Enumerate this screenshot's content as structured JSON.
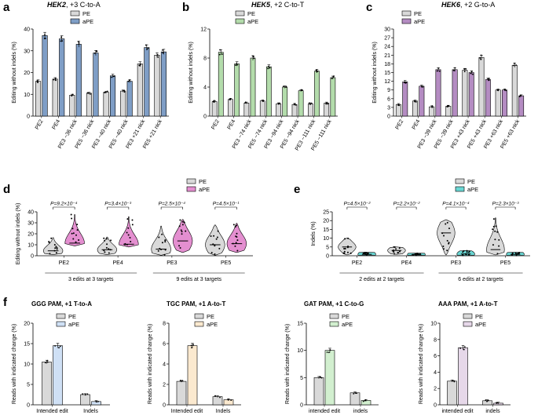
{
  "colors": {
    "pe": "#d9d9d9",
    "blue": "#7f9ec6",
    "green": "#b3dcab",
    "purple": "#b48cc2",
    "pink": "#e48fd0",
    "cyan": "#6ad6d3",
    "f1": "#cfe0f5",
    "f2": "#fbe9cf",
    "f3": "#d2efcf",
    "f4": "#e6d8e9",
    "stroke": "#000000"
  },
  "chart_data": [
    {
      "id": "a",
      "panel_label": "a",
      "type": "bar",
      "title_gene": "HEK2",
      "title_rest": ", +3 C-to-A",
      "ylabel": "Editing without indels (%)",
      "ylim": [
        0,
        40
      ],
      "yticks": [
        "0",
        "10",
        "20",
        "30",
        "40"
      ],
      "legend": [
        "PE",
        "aPE"
      ],
      "categories": [
        "PE2",
        "PE4",
        "PE3 −36 nick",
        "PE5 −36 nick",
        "PE3 −40 nick",
        "PE5 −40 nick",
        "PE3 +21 nick",
        "PE5 +21 nick"
      ],
      "series": [
        {
          "name": "PE",
          "values": [
            16,
            17,
            9.6,
            10.5,
            11,
            11.5,
            24,
            28
          ]
        },
        {
          "name": "aPE",
          "values": [
            37,
            35.5,
            33,
            29,
            18.5,
            16,
            31.5,
            29.5
          ]
        }
      ]
    },
    {
      "id": "b",
      "panel_label": "b",
      "type": "bar",
      "title_gene": "HEK5",
      "title_rest": ", +2 C-to-T",
      "ylabel": "Editing without indels (%)",
      "ylim": [
        0,
        12
      ],
      "yticks": [
        "0",
        "4",
        "8",
        "12"
      ],
      "legend": [
        "PE",
        "aPE"
      ],
      "categories": [
        "PE2",
        "PE4",
        "PE3 −74 nick",
        "PE5 −74 nick",
        "PE3 −94 nick",
        "PE5 −94 nick",
        "PE3 −111 nick",
        "PE5 −111 nick"
      ],
      "series": [
        {
          "name": "PE",
          "values": [
            2,
            2.3,
            1.8,
            2.1,
            1.7,
            1.6,
            1.7,
            1.8
          ]
        },
        {
          "name": "aPE",
          "values": [
            8.8,
            7.2,
            8,
            6.8,
            4,
            3.5,
            6.2,
            5.3
          ]
        }
      ]
    },
    {
      "id": "c",
      "panel_label": "c",
      "type": "bar",
      "title_gene": "HEK6",
      "title_rest": ", +2 G-to-A",
      "ylabel": "Editing without indels (%)",
      "ylim": [
        0,
        30
      ],
      "yticks": [
        "0",
        "3",
        "6",
        "9",
        "12",
        "15",
        "18",
        "21",
        "24",
        "27",
        "30"
      ],
      "legend": [
        "PE",
        "aPE"
      ],
      "categories": [
        "PE2",
        "PE4",
        "PE3 −39 nick",
        "PE5 −39 nick",
        "PE3 +43 nick",
        "PE5 +43 nick",
        "PE3 +63 nick",
        "PE5 +63 nick"
      ],
      "series": [
        {
          "name": "PE",
          "values": [
            4,
            5.2,
            3.2,
            3.4,
            15.8,
            20.2,
            9,
            17.5
          ]
        },
        {
          "name": "aPE",
          "values": [
            11.8,
            10.3,
            16,
            16,
            15,
            12.6,
            9,
            7
          ]
        }
      ]
    },
    {
      "id": "d",
      "panel_label": "d",
      "type": "violin",
      "ylabel": "Editing without indels (%)",
      "ylim": [
        0,
        40
      ],
      "yticks": [
        "0",
        "10",
        "20",
        "30",
        "40"
      ],
      "legend": [
        "PE",
        "aPE"
      ],
      "categories": [
        "PE2",
        "PE4",
        "PE3",
        "PE5"
      ],
      "pvalues": [
        "P=9.2×10⁻⁴",
        "P=3.4×10⁻³",
        "P=2.5×10⁻⁴",
        "P=4.5×10⁻¹"
      ],
      "groups": [
        "3 edits at 3 targets",
        "9 edits at 3 targets"
      ],
      "series": [
        {
          "name": "PE",
          "medians": [
            4.5,
            5.5,
            6,
            10
          ],
          "ranges": [
            [
              1,
              16.5
            ],
            [
              1,
              17
            ],
            [
              0.5,
              27
            ],
            [
              0.5,
              28
            ]
          ]
        },
        {
          "name": "aPE",
          "medians": [
            11.5,
            10.5,
            13.5,
            11
          ],
          "ranges": [
            [
              9,
              37.5
            ],
            [
              8,
              35.5
            ],
            [
              3,
              33
            ],
            [
              3,
              29.5
            ]
          ]
        }
      ]
    },
    {
      "id": "e",
      "panel_label": "e",
      "type": "violin",
      "ylabel": "Indels (%)",
      "ylim": [
        0,
        25
      ],
      "yticks": [
        "0",
        "5",
        "10",
        "15",
        "20",
        "25"
      ],
      "legend": [
        "PE",
        "aPE"
      ],
      "categories": [
        "PE2",
        "PE4",
        "PE3",
        "PE5"
      ],
      "pvalues": [
        "P=4.5×10⁻²",
        "P=2.2×10⁻²",
        "P=4.1×10⁻⁴",
        "P=2.3×10⁻³"
      ],
      "groups": [
        "2 edits at 2 targets",
        "6 edits at 2 targets"
      ],
      "series": [
        {
          "name": "PE",
          "medians": [
            5,
            3,
            13,
            3.5
          ],
          "ranges": [
            [
              0.5,
              10
            ],
            [
              0.8,
              5
            ],
            [
              0.5,
              20.5
            ],
            [
              0.5,
              21.5
            ]
          ]
        },
        {
          "name": "aPE",
          "medians": [
            0.8,
            0.6,
            1,
            0.8
          ],
          "ranges": [
            [
              0.2,
              2
            ],
            [
              0.2,
              1.5
            ],
            [
              0.1,
              3
            ],
            [
              0.1,
              2
            ]
          ]
        }
      ]
    },
    {
      "id": "f1",
      "panel_label": "f",
      "type": "bar",
      "title": "GGG PAM, +1 T-to-A",
      "ylabel": "Reads with indicated change (%)",
      "ylim": [
        0,
        20
      ],
      "yticks": [
        "0",
        "5",
        "10",
        "15",
        "20"
      ],
      "legend": [
        "PE",
        "aPE"
      ],
      "categories": [
        "Intended edit",
        "Indels"
      ],
      "series": [
        {
          "name": "PE",
          "values": [
            10.5,
            2.5
          ]
        },
        {
          "name": "aPE",
          "values": [
            14.5,
            0.8
          ]
        }
      ]
    },
    {
      "id": "f2",
      "type": "bar",
      "title": "TGC PAM, +1 A-to-T",
      "ylabel": "Reads with indicated change (%)",
      "ylim": [
        0,
        8
      ],
      "yticks": [
        "0",
        "2",
        "4",
        "6",
        "8"
      ],
      "legend": [
        "PE",
        "aPE"
      ],
      "categories": [
        "Intended edit",
        "Indels"
      ],
      "series": [
        {
          "name": "PE",
          "values": [
            2.3,
            0.8
          ]
        },
        {
          "name": "aPE",
          "values": [
            5.8,
            0.5
          ]
        }
      ]
    },
    {
      "id": "f3",
      "type": "bar",
      "title": "GAT PAM, +1 C-to-G",
      "ylabel": "Reads with indicated change (%)",
      "ylim": [
        0,
        15
      ],
      "yticks": [
        "0",
        "5",
        "10",
        "15"
      ],
      "legend": [
        "PE",
        "aPE"
      ],
      "categories": [
        "intended edit",
        "indels"
      ],
      "series": [
        {
          "name": "PE",
          "values": [
            5,
            2.2
          ]
        },
        {
          "name": "aPE",
          "values": [
            10,
            0.8
          ]
        }
      ]
    },
    {
      "id": "f4",
      "type": "bar",
      "title": "AAA PAM, +1 A-to-T",
      "ylabel": "Reads with indicated change (%)",
      "ylim": [
        0,
        10
      ],
      "yticks": [
        "0",
        "2",
        "4",
        "6",
        "8",
        "10"
      ],
      "legend": [
        "PE",
        "aPE"
      ],
      "categories": [
        "intended edit",
        "indels"
      ],
      "series": [
        {
          "name": "PE",
          "values": [
            2.9,
            0.5
          ]
        },
        {
          "name": "aPE",
          "values": [
            7,
            0.2
          ]
        }
      ]
    }
  ]
}
